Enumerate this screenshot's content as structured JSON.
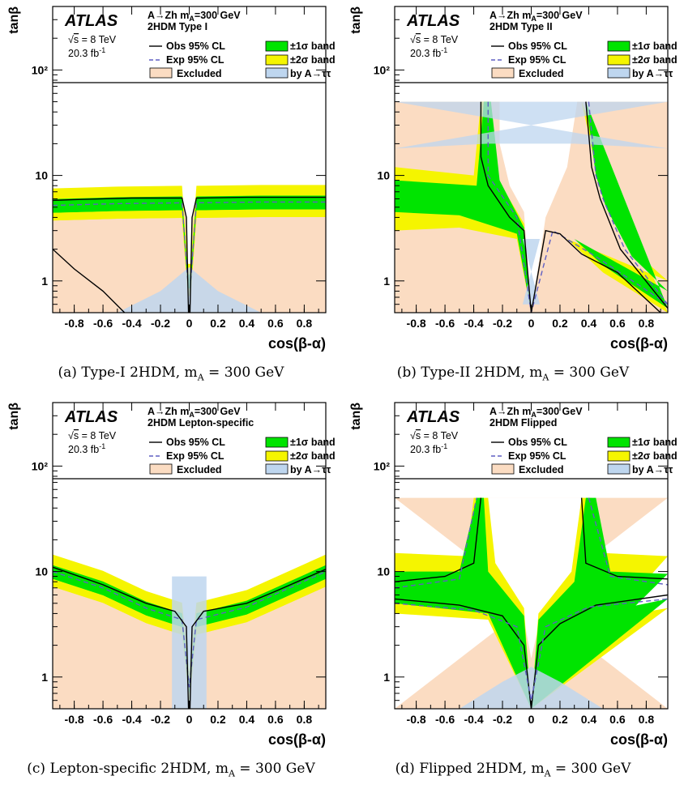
{
  "colors": {
    "excluded": "#fbdcc2",
    "atautau": "#bed6ef",
    "band1": "#00e400",
    "band2": "#f5f500",
    "obs": "#000000",
    "exp": "#5f5fc4"
  },
  "shared": {
    "atlas": "ATLAS",
    "process": "A→Zh m",
    "process_sub": "A",
    "process_tail": "=300 GeV",
    "energy_root": "s",
    "energy_tail": " = 8 TeV",
    "lumi": "20.3 fb",
    "lumi_exp": "-1",
    "legend": {
      "obs": "Obs 95% CL",
      "exp": "Exp 95% CL",
      "excluded": "Excluded",
      "band1": "±1σ band",
      "band2": "±2σ band",
      "atautau": "by A→ττ"
    },
    "xlabel": "cos(β-α)",
    "ylabel": "tanβ"
  },
  "chart_data": [
    {
      "type": "area",
      "model": "2HDM Type I",
      "caption": "(a) Type-I 2HDM, m",
      "caption_sub": "A",
      "caption_tail": " = 300 GeV",
      "xlim": [
        -0.95,
        0.95
      ],
      "ylim": [
        0.5,
        400
      ],
      "yscale": "log",
      "x_ticks": [
        "-0.8",
        "-0.6",
        "-0.4",
        "-0.2",
        "0",
        "0.2",
        "0.4",
        "0.6",
        "0.8"
      ],
      "y_ticks": [
        "1",
        "10",
        "10²"
      ],
      "obs_upper": [
        [
          -0.95,
          5.8
        ],
        [
          -0.8,
          5.9
        ],
        [
          -0.4,
          6.1
        ],
        [
          -0.05,
          6.1
        ],
        [
          -0.02,
          4.0
        ],
        [
          -0.005,
          0.5
        ],
        [
          0.005,
          0.5
        ],
        [
          0.02,
          4.0
        ],
        [
          0.05,
          6.1
        ],
        [
          0.4,
          6.2
        ],
        [
          0.8,
          6.2
        ],
        [
          0.95,
          6.2
        ]
      ],
      "exp_upper": [
        [
          -0.95,
          5.2
        ],
        [
          -0.5,
          5.4
        ],
        [
          -0.05,
          5.5
        ],
        [
          -0.01,
          1.0
        ],
        [
          0.01,
          1.0
        ],
        [
          0.05,
          5.5
        ],
        [
          0.5,
          5.6
        ],
        [
          0.95,
          5.6
        ]
      ],
      "obs_lower": [
        [
          -0.95,
          2.0
        ],
        [
          -0.8,
          1.3
        ],
        [
          -0.6,
          0.8
        ],
        [
          -0.45,
          0.5
        ]
      ]
    },
    {
      "type": "area",
      "model": "2HDM Type II",
      "caption": "(b) Type-II 2HDM, m",
      "caption_sub": "A",
      "caption_tail": " = 300 GeV",
      "xlim": [
        -0.95,
        0.95
      ],
      "ylim": [
        0.5,
        400
      ],
      "yscale": "log",
      "x_ticks": [
        "-0.8",
        "-0.6",
        "-0.4",
        "-0.2",
        "0",
        "0.2",
        "0.4",
        "0.6",
        "0.8"
      ],
      "y_ticks": [
        "1",
        "10",
        "10²"
      ],
      "obs_upper": [
        [
          -0.35,
          50
        ],
        [
          -0.35,
          15
        ],
        [
          -0.3,
          8
        ],
        [
          -0.15,
          4.0
        ],
        [
          -0.05,
          3.0
        ],
        [
          0,
          0.5
        ],
        [
          0.1,
          3.0
        ],
        [
          0.2,
          2.8
        ],
        [
          0.35,
          1.8
        ],
        [
          0.6,
          1.2
        ],
        [
          0.9,
          0.5
        ]
      ],
      "exp_upper": [
        [
          -0.3,
          50
        ],
        [
          -0.3,
          10
        ],
        [
          -0.1,
          4.0
        ],
        [
          0,
          0.5
        ],
        [
          0.15,
          3.0
        ],
        [
          0.45,
          1.7
        ],
        [
          0.95,
          0.6
        ]
      ]
    },
    {
      "type": "area",
      "model": "2HDM Lepton-specific",
      "caption": "(c) Lepton-specific 2HDM, m",
      "caption_sub": "A",
      "caption_tail": " = 300 GeV",
      "xlim": [
        -0.95,
        0.95
      ],
      "ylim": [
        0.5,
        400
      ],
      "yscale": "log",
      "x_ticks": [
        "-0.8",
        "-0.6",
        "-0.4",
        "-0.2",
        "0",
        "0.2",
        "0.4",
        "0.6",
        "0.8"
      ],
      "y_ticks": [
        "1",
        "10",
        "10²"
      ],
      "obs_upper": [
        [
          -0.95,
          11.0
        ],
        [
          -0.6,
          7.5
        ],
        [
          -0.3,
          5.0
        ],
        [
          -0.1,
          4.2
        ],
        [
          -0.02,
          3.0
        ],
        [
          -0.005,
          0.5
        ],
        [
          0.005,
          0.5
        ],
        [
          0.02,
          3.0
        ],
        [
          0.1,
          4.2
        ],
        [
          0.4,
          5.0
        ],
        [
          0.6,
          6.5
        ],
        [
          0.95,
          10.5
        ]
      ],
      "exp_upper": [
        [
          -0.95,
          10.0
        ],
        [
          -0.6,
          7.0
        ],
        [
          -0.3,
          4.5
        ],
        [
          -0.05,
          3.5
        ],
        [
          0,
          0.8
        ],
        [
          0.05,
          3.5
        ],
        [
          0.4,
          4.6
        ],
        [
          0.95,
          10.0
        ]
      ]
    },
    {
      "type": "area",
      "model": "2HDM Flipped",
      "caption": "(d) Flipped 2HDM, m",
      "caption_sub": "A",
      "caption_tail": " = 300 GeV",
      "xlim": [
        -0.95,
        0.95
      ],
      "ylim": [
        0.5,
        400
      ],
      "yscale": "log",
      "x_ticks": [
        "-0.8",
        "-0.6",
        "-0.4",
        "-0.2",
        "0",
        "0.2",
        "0.4",
        "0.6",
        "0.8"
      ],
      "y_ticks": [
        "1",
        "10",
        "10²"
      ],
      "obs_upper": [
        [
          -0.95,
          5.5
        ],
        [
          -0.5,
          4.8
        ],
        [
          -0.2,
          3.8
        ],
        [
          -0.05,
          2.0
        ],
        [
          0,
          0.5
        ],
        [
          0.05,
          2.0
        ],
        [
          0.2,
          3.2
        ],
        [
          0.45,
          4.8
        ],
        [
          0.95,
          6.0
        ]
      ],
      "obs_upper2": [
        [
          -0.95,
          8.0
        ],
        [
          -0.6,
          9.0
        ],
        [
          -0.4,
          12.0
        ],
        [
          -0.35,
          50
        ]
      ],
      "obs_upper3": [
        [
          0.35,
          50
        ],
        [
          0.38,
          12.0
        ],
        [
          0.6,
          9.0
        ],
        [
          0.95,
          8.5
        ]
      ]
    }
  ]
}
